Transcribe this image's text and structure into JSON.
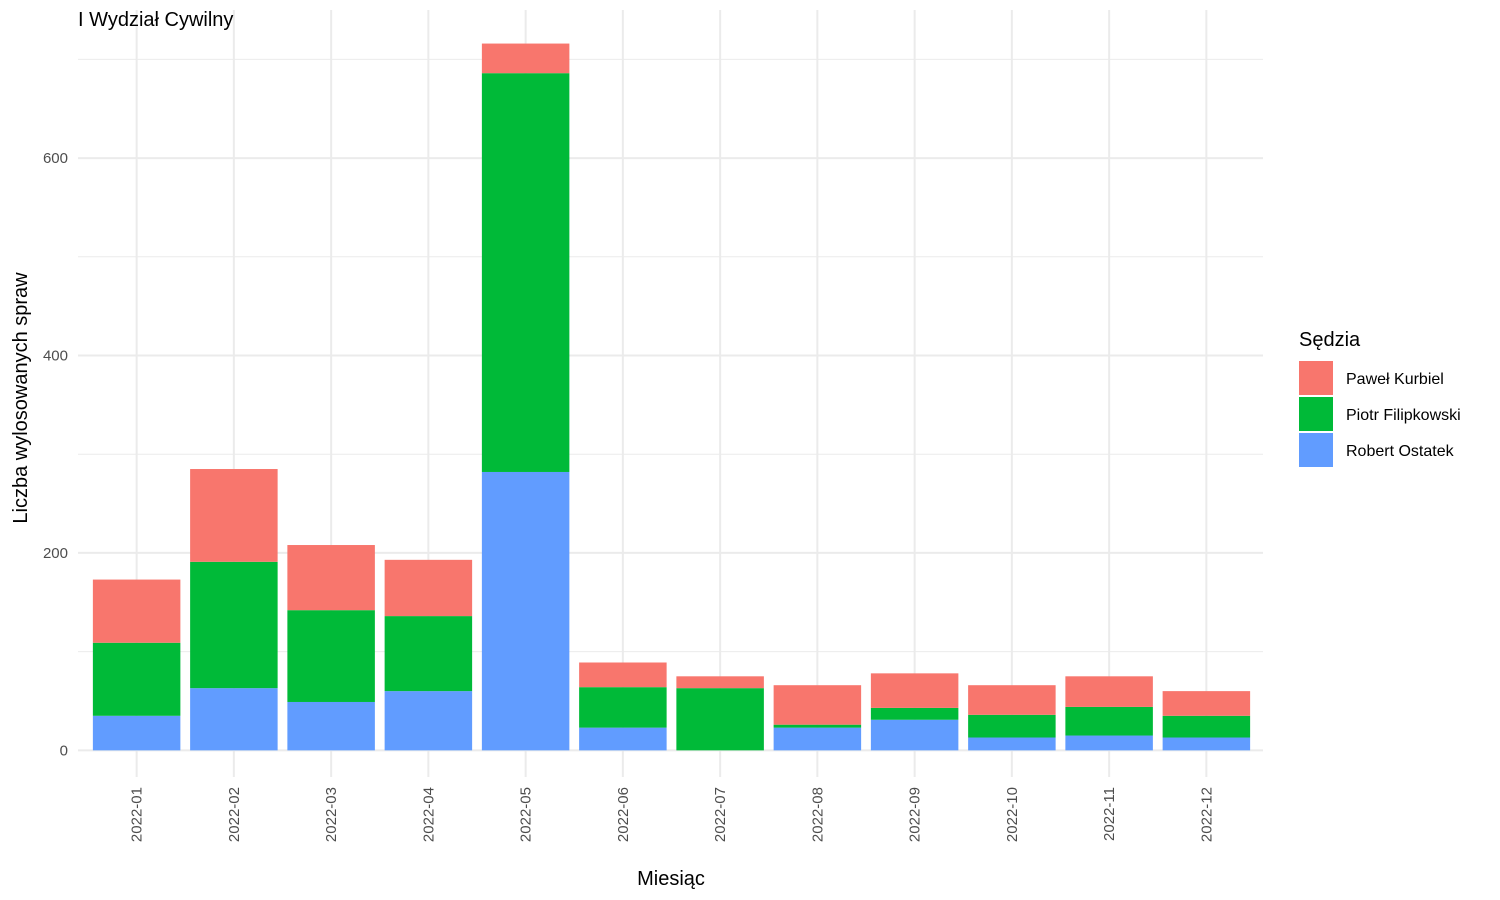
{
  "chart_data": {
    "type": "bar",
    "stacked": true,
    "title": "I Wydział Cywilny",
    "xlabel": "Miesiąc",
    "ylabel": "Liczba wylosowanych spraw",
    "categories": [
      "2022-01",
      "2022-02",
      "2022-03",
      "2022-04",
      "2022-05",
      "2022-06",
      "2022-07",
      "2022-08",
      "2022-09",
      "2022-10",
      "2022-11",
      "2022-12"
    ],
    "series": [
      {
        "name": "Robert Ostatek",
        "color": "#619CFF",
        "values": [
          35,
          63,
          49,
          60,
          282,
          23,
          0,
          23,
          31,
          13,
          15,
          13
        ]
      },
      {
        "name": "Piotr Filipkowski",
        "color": "#00BA38",
        "values": [
          74,
          128,
          93,
          76,
          404,
          41,
          63,
          3,
          12,
          23,
          29,
          22
        ]
      },
      {
        "name": "Paweł Kurbiel",
        "color": "#F8766D",
        "values": [
          64,
          94,
          66,
          57,
          30,
          25,
          12,
          40,
          35,
          30,
          31,
          25
        ]
      }
    ],
    "ylim": [
      -27,
      750
    ],
    "yticks": [
      0,
      200,
      400,
      600
    ],
    "grid": true,
    "legend": {
      "title": "Sędzia",
      "position": "right",
      "order": [
        "Paweł Kurbiel",
        "Piotr Filipkowski",
        "Robert Ostatek"
      ]
    }
  }
}
